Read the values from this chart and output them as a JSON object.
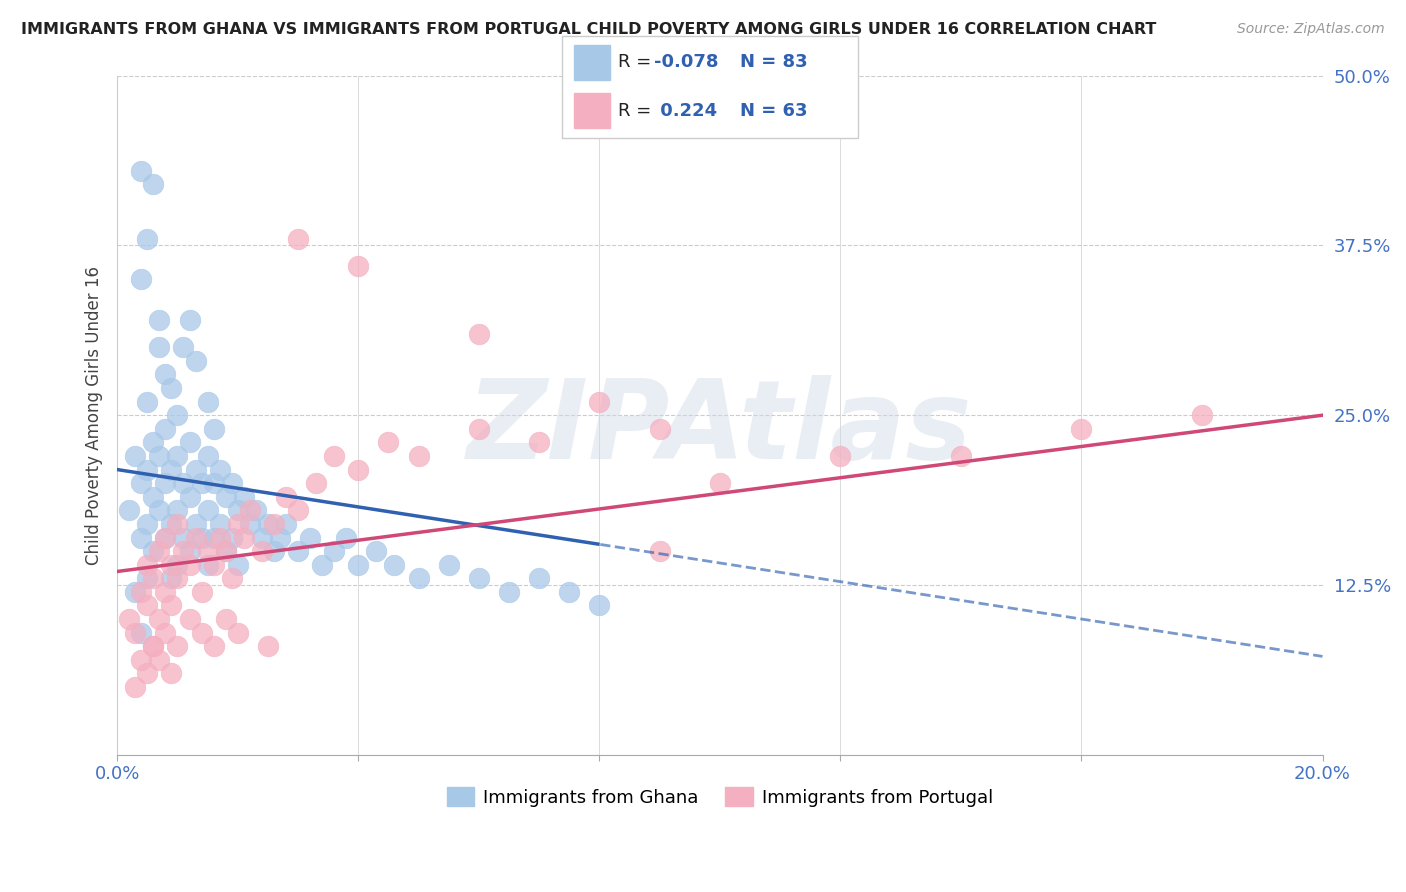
{
  "title": "IMMIGRANTS FROM GHANA VS IMMIGRANTS FROM PORTUGAL CHILD POVERTY AMONG GIRLS UNDER 16 CORRELATION CHART",
  "source": "Source: ZipAtlas.com",
  "ylabel": "Child Poverty Among Girls Under 16",
  "xlim": [
    0.0,
    0.2
  ],
  "ylim": [
    0.0,
    0.5
  ],
  "xticks": [
    0.0,
    0.04,
    0.08,
    0.12,
    0.16,
    0.2
  ],
  "xticklabels": [
    "0.0%",
    "",
    "",
    "",
    "",
    "20.0%"
  ],
  "yticks": [
    0.0,
    0.125,
    0.25,
    0.375,
    0.5
  ],
  "yticklabels": [
    "",
    "12.5%",
    "25.0%",
    "37.5%",
    "50.0%"
  ],
  "ghana_R": -0.078,
  "ghana_N": 83,
  "portugal_R": 0.224,
  "portugal_N": 63,
  "ghana_color": "#a8c8e8",
  "portugal_color": "#f4afc0",
  "ghana_line_color": "#3060b0",
  "portugal_line_color": "#d04878",
  "background_color": "#ffffff",
  "grid_color": "#cccccc",
  "watermark": "ZIPAtlas",
  "ghana_seed": 12345,
  "portugal_seed": 67890,
  "ghana_x": [
    0.002,
    0.003,
    0.003,
    0.004,
    0.004,
    0.004,
    0.005,
    0.005,
    0.005,
    0.005,
    0.006,
    0.006,
    0.006,
    0.007,
    0.007,
    0.007,
    0.008,
    0.008,
    0.008,
    0.009,
    0.009,
    0.009,
    0.01,
    0.01,
    0.01,
    0.011,
    0.011,
    0.012,
    0.012,
    0.012,
    0.013,
    0.013,
    0.014,
    0.014,
    0.015,
    0.015,
    0.015,
    0.016,
    0.016,
    0.017,
    0.017,
    0.018,
    0.018,
    0.019,
    0.019,
    0.02,
    0.02,
    0.021,
    0.022,
    0.023,
    0.024,
    0.025,
    0.026,
    0.027,
    0.028,
    0.03,
    0.032,
    0.034,
    0.036,
    0.038,
    0.04,
    0.043,
    0.046,
    0.05,
    0.055,
    0.06,
    0.065,
    0.07,
    0.075,
    0.08,
    0.004,
    0.004,
    0.005,
    0.006,
    0.007,
    0.008,
    0.009,
    0.01,
    0.011,
    0.012,
    0.013,
    0.015,
    0.016
  ],
  "ghana_y": [
    0.18,
    0.12,
    0.22,
    0.16,
    0.2,
    0.09,
    0.21,
    0.17,
    0.13,
    0.26,
    0.19,
    0.23,
    0.15,
    0.22,
    0.18,
    0.3,
    0.2,
    0.16,
    0.24,
    0.21,
    0.17,
    0.13,
    0.22,
    0.18,
    0.14,
    0.2,
    0.16,
    0.23,
    0.19,
    0.15,
    0.21,
    0.17,
    0.2,
    0.16,
    0.22,
    0.18,
    0.14,
    0.2,
    0.16,
    0.21,
    0.17,
    0.19,
    0.15,
    0.2,
    0.16,
    0.18,
    0.14,
    0.19,
    0.17,
    0.18,
    0.16,
    0.17,
    0.15,
    0.16,
    0.17,
    0.15,
    0.16,
    0.14,
    0.15,
    0.16,
    0.14,
    0.15,
    0.14,
    0.13,
    0.14,
    0.13,
    0.12,
    0.13,
    0.12,
    0.11,
    0.35,
    0.43,
    0.38,
    0.42,
    0.32,
    0.28,
    0.27,
    0.25,
    0.3,
    0.32,
    0.29,
    0.26,
    0.24
  ],
  "portugal_x": [
    0.002,
    0.003,
    0.004,
    0.005,
    0.005,
    0.006,
    0.006,
    0.007,
    0.007,
    0.008,
    0.008,
    0.009,
    0.009,
    0.01,
    0.01,
    0.011,
    0.012,
    0.013,
    0.014,
    0.015,
    0.016,
    0.017,
    0.018,
    0.019,
    0.02,
    0.021,
    0.022,
    0.024,
    0.026,
    0.028,
    0.03,
    0.033,
    0.036,
    0.04,
    0.045,
    0.05,
    0.06,
    0.07,
    0.08,
    0.09,
    0.1,
    0.12,
    0.14,
    0.16,
    0.18,
    0.003,
    0.004,
    0.005,
    0.006,
    0.007,
    0.008,
    0.009,
    0.01,
    0.012,
    0.014,
    0.016,
    0.018,
    0.02,
    0.025,
    0.03,
    0.04,
    0.06,
    0.09
  ],
  "portugal_y": [
    0.1,
    0.09,
    0.12,
    0.11,
    0.14,
    0.13,
    0.08,
    0.15,
    0.1,
    0.12,
    0.16,
    0.11,
    0.14,
    0.13,
    0.17,
    0.15,
    0.14,
    0.16,
    0.12,
    0.15,
    0.14,
    0.16,
    0.15,
    0.13,
    0.17,
    0.16,
    0.18,
    0.15,
    0.17,
    0.19,
    0.18,
    0.2,
    0.22,
    0.21,
    0.23,
    0.22,
    0.24,
    0.23,
    0.26,
    0.24,
    0.2,
    0.22,
    0.22,
    0.24,
    0.25,
    0.05,
    0.07,
    0.06,
    0.08,
    0.07,
    0.09,
    0.06,
    0.08,
    0.1,
    0.09,
    0.08,
    0.1,
    0.09,
    0.08,
    0.38,
    0.36,
    0.31,
    0.15
  ]
}
